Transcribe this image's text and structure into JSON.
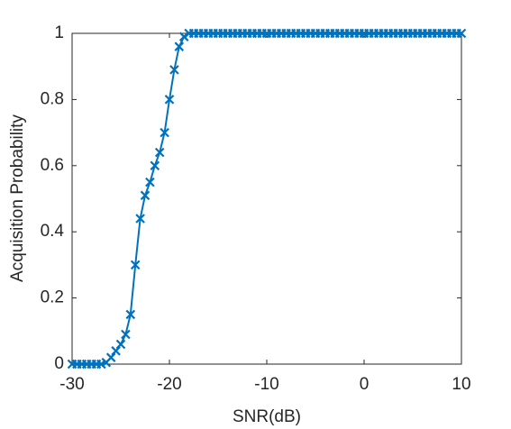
{
  "chart_data": {
    "type": "line",
    "x_label": "SNR(dB)",
    "y_label": "Acquisition Probability",
    "x": [
      -30,
      -29.5,
      -29,
      -28.5,
      -28,
      -27.5,
      -27,
      -26.5,
      -26,
      -25.5,
      -25,
      -24.5,
      -24,
      -23.5,
      -23,
      -22.5,
      -22,
      -21.5,
      -21,
      -20.5,
      -20,
      -19.5,
      -19,
      -18.5,
      -18,
      -17.5,
      -17,
      -16.5,
      -16,
      -15.5,
      -15,
      -14.5,
      -14,
      -13.5,
      -13,
      -12.5,
      -12,
      -11.5,
      -11,
      -10.5,
      -10,
      -9.5,
      -9,
      -8.5,
      -8,
      -7.5,
      -7,
      -6.5,
      -6,
      -5.5,
      -5,
      -4.5,
      -4,
      -3.5,
      -3,
      -2.5,
      -2,
      -1.5,
      -1,
      -0.5,
      0,
      0.5,
      1,
      1.5,
      2,
      2.5,
      3,
      3.5,
      4,
      4.5,
      5,
      5.5,
      6,
      6.5,
      7,
      7.5,
      8,
      8.5,
      9,
      9.5,
      10
    ],
    "series": [
      {
        "color": "#0072bd",
        "values": [
          0,
          0,
          0,
          0,
          0,
          0,
          0,
          0.005,
          0.02,
          0.04,
          0.06,
          0.09,
          0.15,
          0.3,
          0.44,
          0.51,
          0.55,
          0.6,
          0.64,
          0.7,
          0.8,
          0.89,
          0.96,
          0.99,
          1,
          1,
          1,
          1,
          1,
          1,
          1,
          1,
          1,
          1,
          1,
          1,
          1,
          1,
          1,
          1,
          1,
          1,
          1,
          1,
          1,
          1,
          1,
          1,
          1,
          1,
          1,
          1,
          1,
          1,
          1,
          1,
          1,
          1,
          1,
          1,
          1,
          1,
          1,
          1,
          1,
          1,
          1,
          1,
          1,
          1,
          1,
          1,
          1,
          1,
          1,
          1,
          1,
          1,
          1,
          1,
          1
        ]
      }
    ],
    "xlim": [
      -30,
      10
    ],
    "ylim": [
      0,
      1
    ],
    "xticks": [
      -30,
      -20,
      -10,
      0,
      10
    ],
    "yticks": [
      0,
      0.2,
      0.4,
      0.6,
      0.8,
      1
    ]
  }
}
